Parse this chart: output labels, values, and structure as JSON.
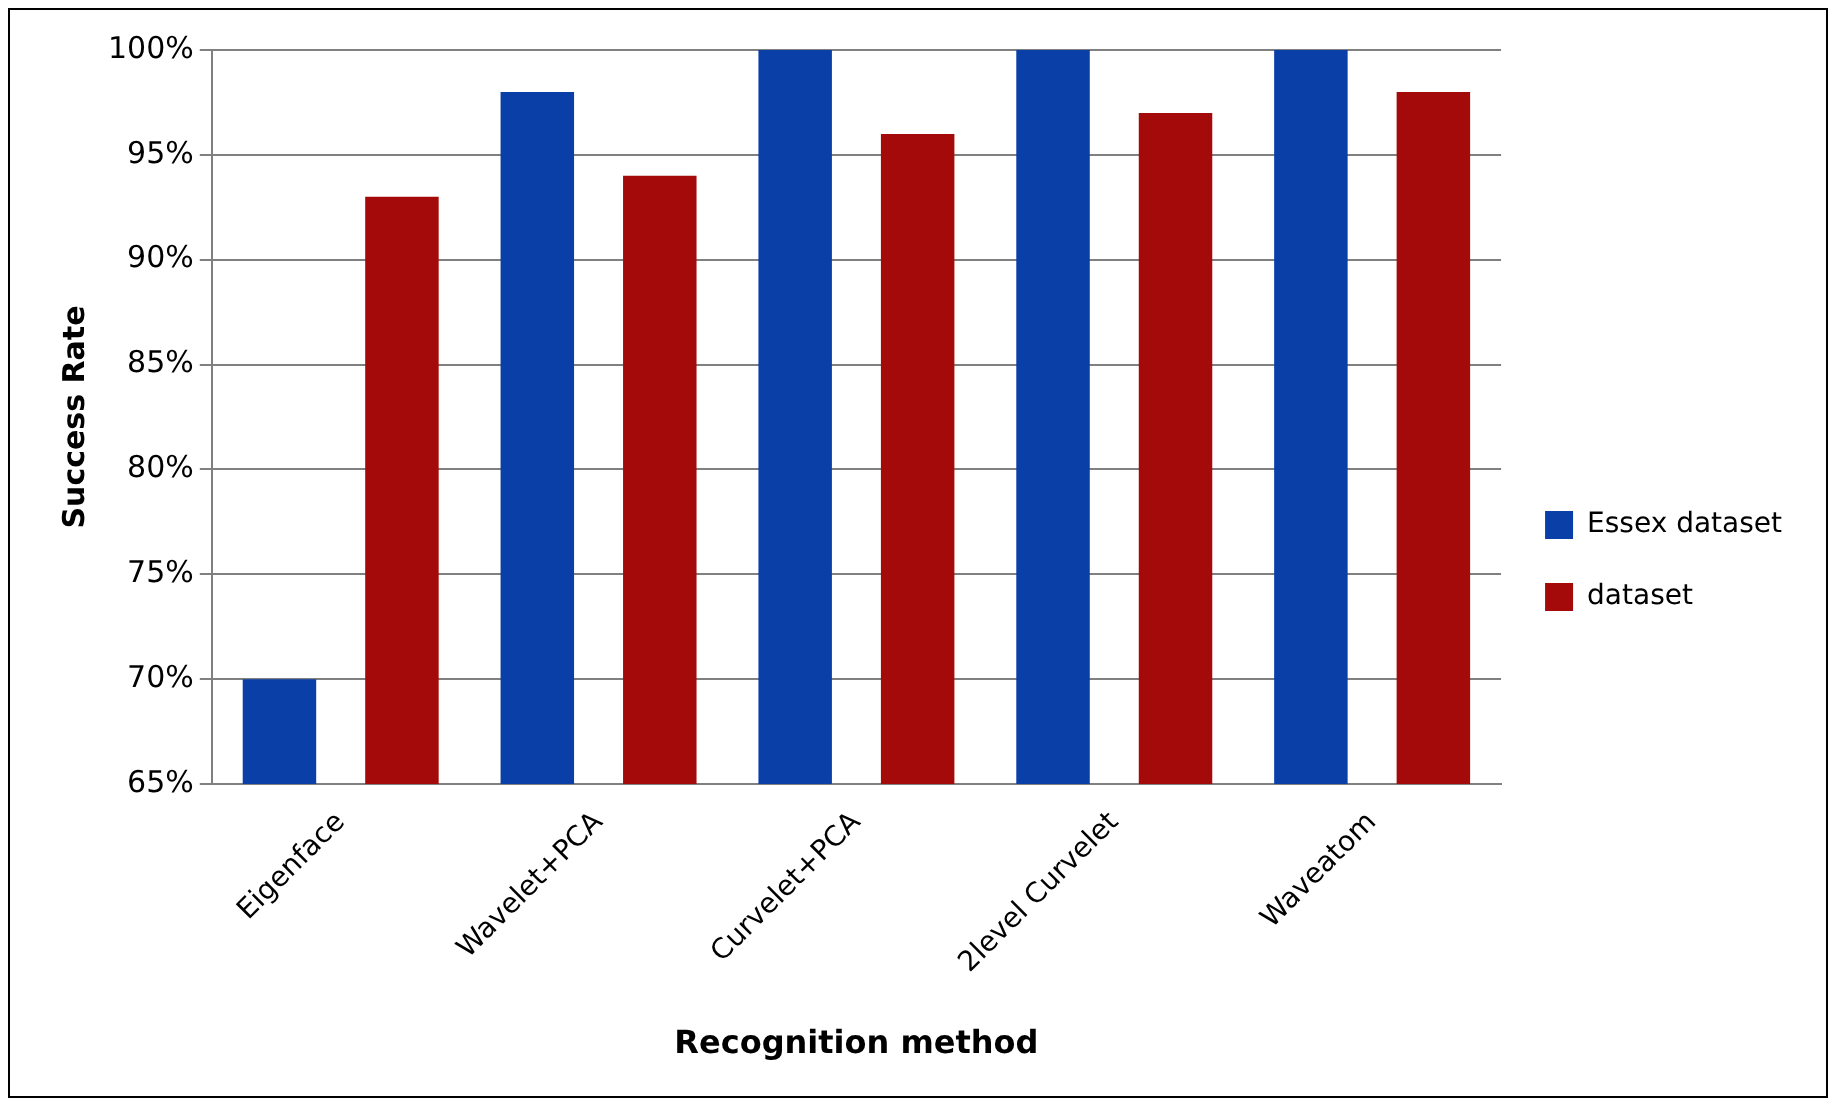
{
  "chart_data": {
    "type": "bar",
    "xlabel": "Recognition method",
    "ylabel": "Success Rate",
    "categories": [
      "Eigenface",
      "Wavelet+PCA",
      "Curvelet+PCA",
      "2level Curvelet",
      "Waveatom"
    ],
    "series": [
      {
        "name": "Essex dataset",
        "color": "#0b3fa8",
        "values": [
          70,
          98,
          100,
          100,
          100
        ]
      },
      {
        "name": "dataset",
        "color": "#a50a0a",
        "values": [
          93,
          94,
          96,
          97,
          98
        ]
      }
    ],
    "ylim": [
      65,
      100
    ],
    "yticks": [
      {
        "value": 65,
        "label": "65%"
      },
      {
        "value": 70,
        "label": "70%"
      },
      {
        "value": 75,
        "label": "75%"
      },
      {
        "value": 80,
        "label": "80%"
      },
      {
        "value": 85,
        "label": "85%"
      },
      {
        "value": 90,
        "label": "90%"
      },
      {
        "value": 95,
        "label": "95%"
      },
      {
        "value": 100,
        "label": "100%"
      }
    ],
    "grid": "y",
    "legend": "right"
  }
}
